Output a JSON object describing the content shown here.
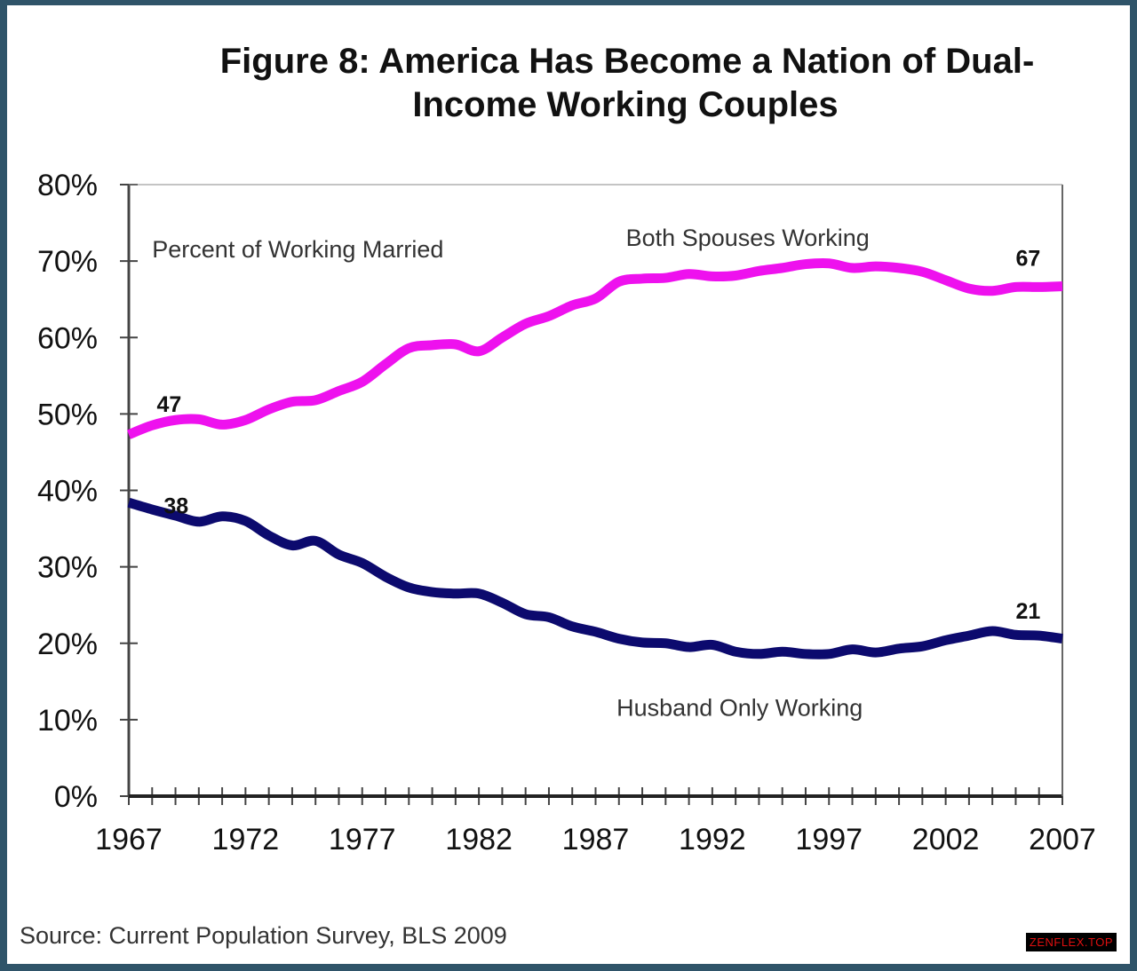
{
  "chart_data": {
    "type": "line",
    "title_lines": [
      "Figure 8: America Has Become a Nation of Dual-",
      "Income Working Couples"
    ],
    "xlabel": "",
    "ylabel": "",
    "xlim": [
      1967,
      2007
    ],
    "ylim": [
      0,
      80
    ],
    "x_ticks": [
      1967,
      1972,
      1977,
      1982,
      1987,
      1992,
      1997,
      2002,
      2007
    ],
    "x_tick_labels": [
      "1967",
      "1972",
      "1977",
      "1982",
      "1987",
      "1992",
      "1997",
      "2002",
      "2007"
    ],
    "x_minor_tick_step": 1,
    "y_ticks": [
      0,
      10,
      20,
      30,
      40,
      50,
      60,
      70,
      80
    ],
    "y_tick_labels": [
      "0%",
      "10%",
      "20%",
      "30%",
      "40%",
      "50%",
      "60%",
      "70%",
      "80%"
    ],
    "grid": false,
    "legend": "none (inline labels)",
    "x": [
      1967,
      1968,
      1969,
      1970,
      1971,
      1972,
      1973,
      1974,
      1975,
      1976,
      1977,
      1978,
      1979,
      1980,
      1981,
      1982,
      1983,
      1984,
      1985,
      1986,
      1987,
      1988,
      1989,
      1990,
      1991,
      1992,
      1993,
      1994,
      1995,
      1996,
      1997,
      1998,
      1999,
      2000,
      2001,
      2002,
      2003,
      2004,
      2005,
      2006,
      2007
    ],
    "series": [
      {
        "name": "Both Spouses Working",
        "color": "#ee11ee",
        "values": [
          47.3,
          48.5,
          49.2,
          49.3,
          48.6,
          49.2,
          50.6,
          51.6,
          51.8,
          53.0,
          54.2,
          56.5,
          58.6,
          59.0,
          59.1,
          58.2,
          60.0,
          61.8,
          62.8,
          64.2,
          65.1,
          67.3,
          67.7,
          67.8,
          68.3,
          68.0,
          68.1,
          68.7,
          69.1,
          69.6,
          69.7,
          69.1,
          69.3,
          69.1,
          68.6,
          67.5,
          66.4,
          66.1,
          66.6,
          66.6,
          66.7
        ]
      },
      {
        "name": "Husband Only Working",
        "color": "#0c0a6e",
        "values": [
          38.4,
          37.5,
          36.7,
          35.9,
          36.6,
          36.0,
          34.1,
          32.8,
          33.4,
          31.6,
          30.5,
          28.7,
          27.3,
          26.7,
          26.5,
          26.5,
          25.3,
          23.8,
          23.4,
          22.2,
          21.5,
          20.6,
          20.1,
          20.0,
          19.5,
          19.8,
          18.9,
          18.6,
          18.9,
          18.6,
          18.6,
          19.2,
          18.8,
          19.3,
          19.6,
          20.4,
          21.0,
          21.6,
          21.1,
          21.0,
          20.6
        ]
      }
    ],
    "annotations": [
      {
        "id": "subtitle",
        "text": "Percent of Working Married",
        "x": 1968.0,
        "y": 70.5
      },
      {
        "id": "both-label",
        "text": "Both Spouses Working",
        "x": 1988.3,
        "y": 72.0
      },
      {
        "id": "husband-label",
        "text": "Husband Only Working",
        "x": 1987.9,
        "y": 10.5
      }
    ],
    "data_labels": [
      {
        "series": "Both Spouses Working",
        "text": "47",
        "x": 1968.2,
        "y": 50.3
      },
      {
        "series": "Both Spouses Working",
        "text": "67",
        "x": 2005.0,
        "y": 69.4
      },
      {
        "series": "Husband Only Working",
        "text": "38",
        "x": 1968.5,
        "y": 37.0
      },
      {
        "series": "Husband Only Working",
        "text": "21",
        "x": 2005.0,
        "y": 23.2
      }
    ],
    "source": "Source: Current Population  Survey, BLS 2009"
  },
  "watermark": "ZENFLEX.TOP"
}
